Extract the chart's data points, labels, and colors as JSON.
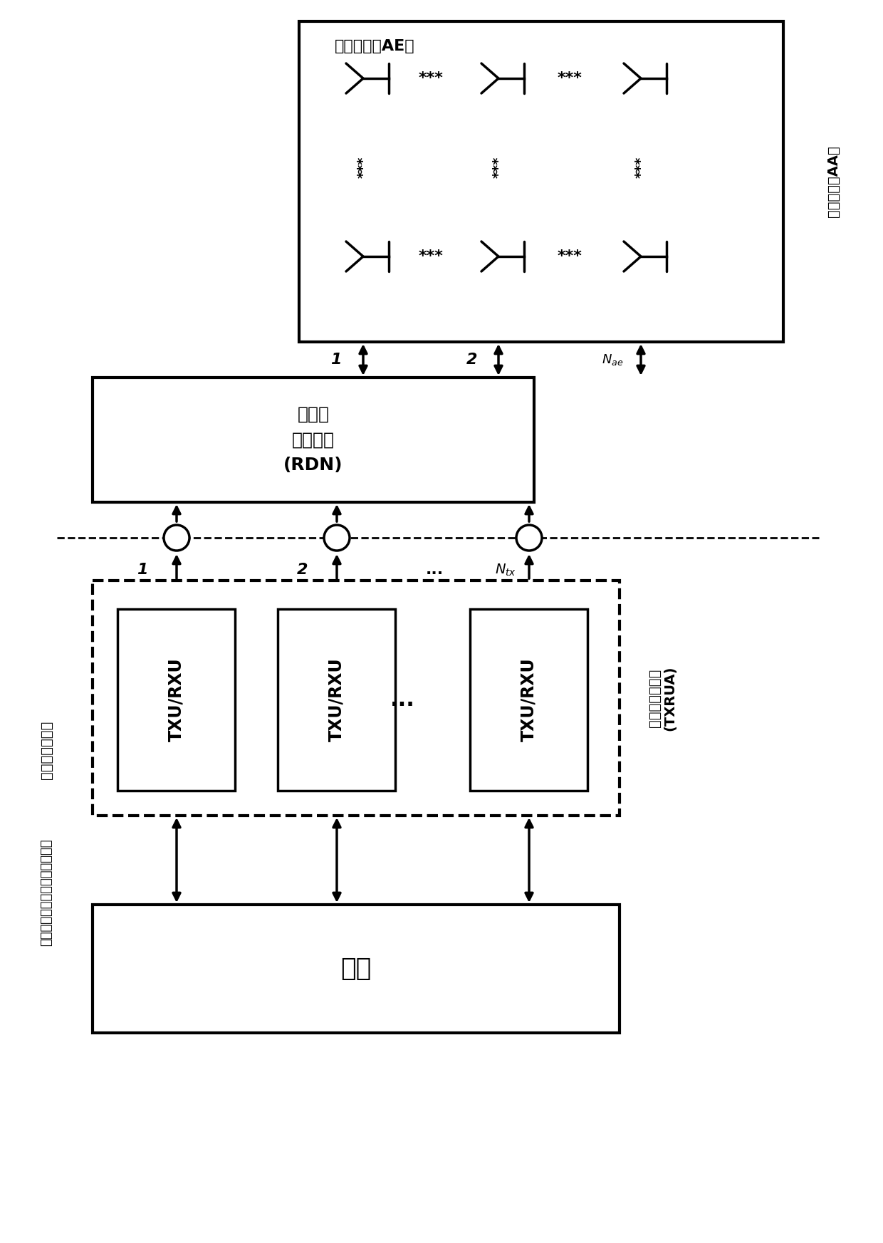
{
  "bg_color": "#ffffff",
  "ec": "#000000",
  "lw": 2.5,
  "baseband_label": "基带",
  "rdn_label": "无线电\n分配网络\n(RDN)",
  "ae_label": "阵列单元（AE）",
  "aa_side_label": "天线阵列（AA）",
  "txrua_side_label": "收发机单元阵列\n(TXRUA)",
  "left_side_label1": "收发机阵列边界",
  "left_side_label2": "（物理天线端口／天线连接器）",
  "txrxu_label": "TXU/RXU",
  "dots3": "...",
  "label1": "1",
  "label2": "2",
  "label_ntx": "$N_{tx}$",
  "label_nae": "$N_{ae}$"
}
